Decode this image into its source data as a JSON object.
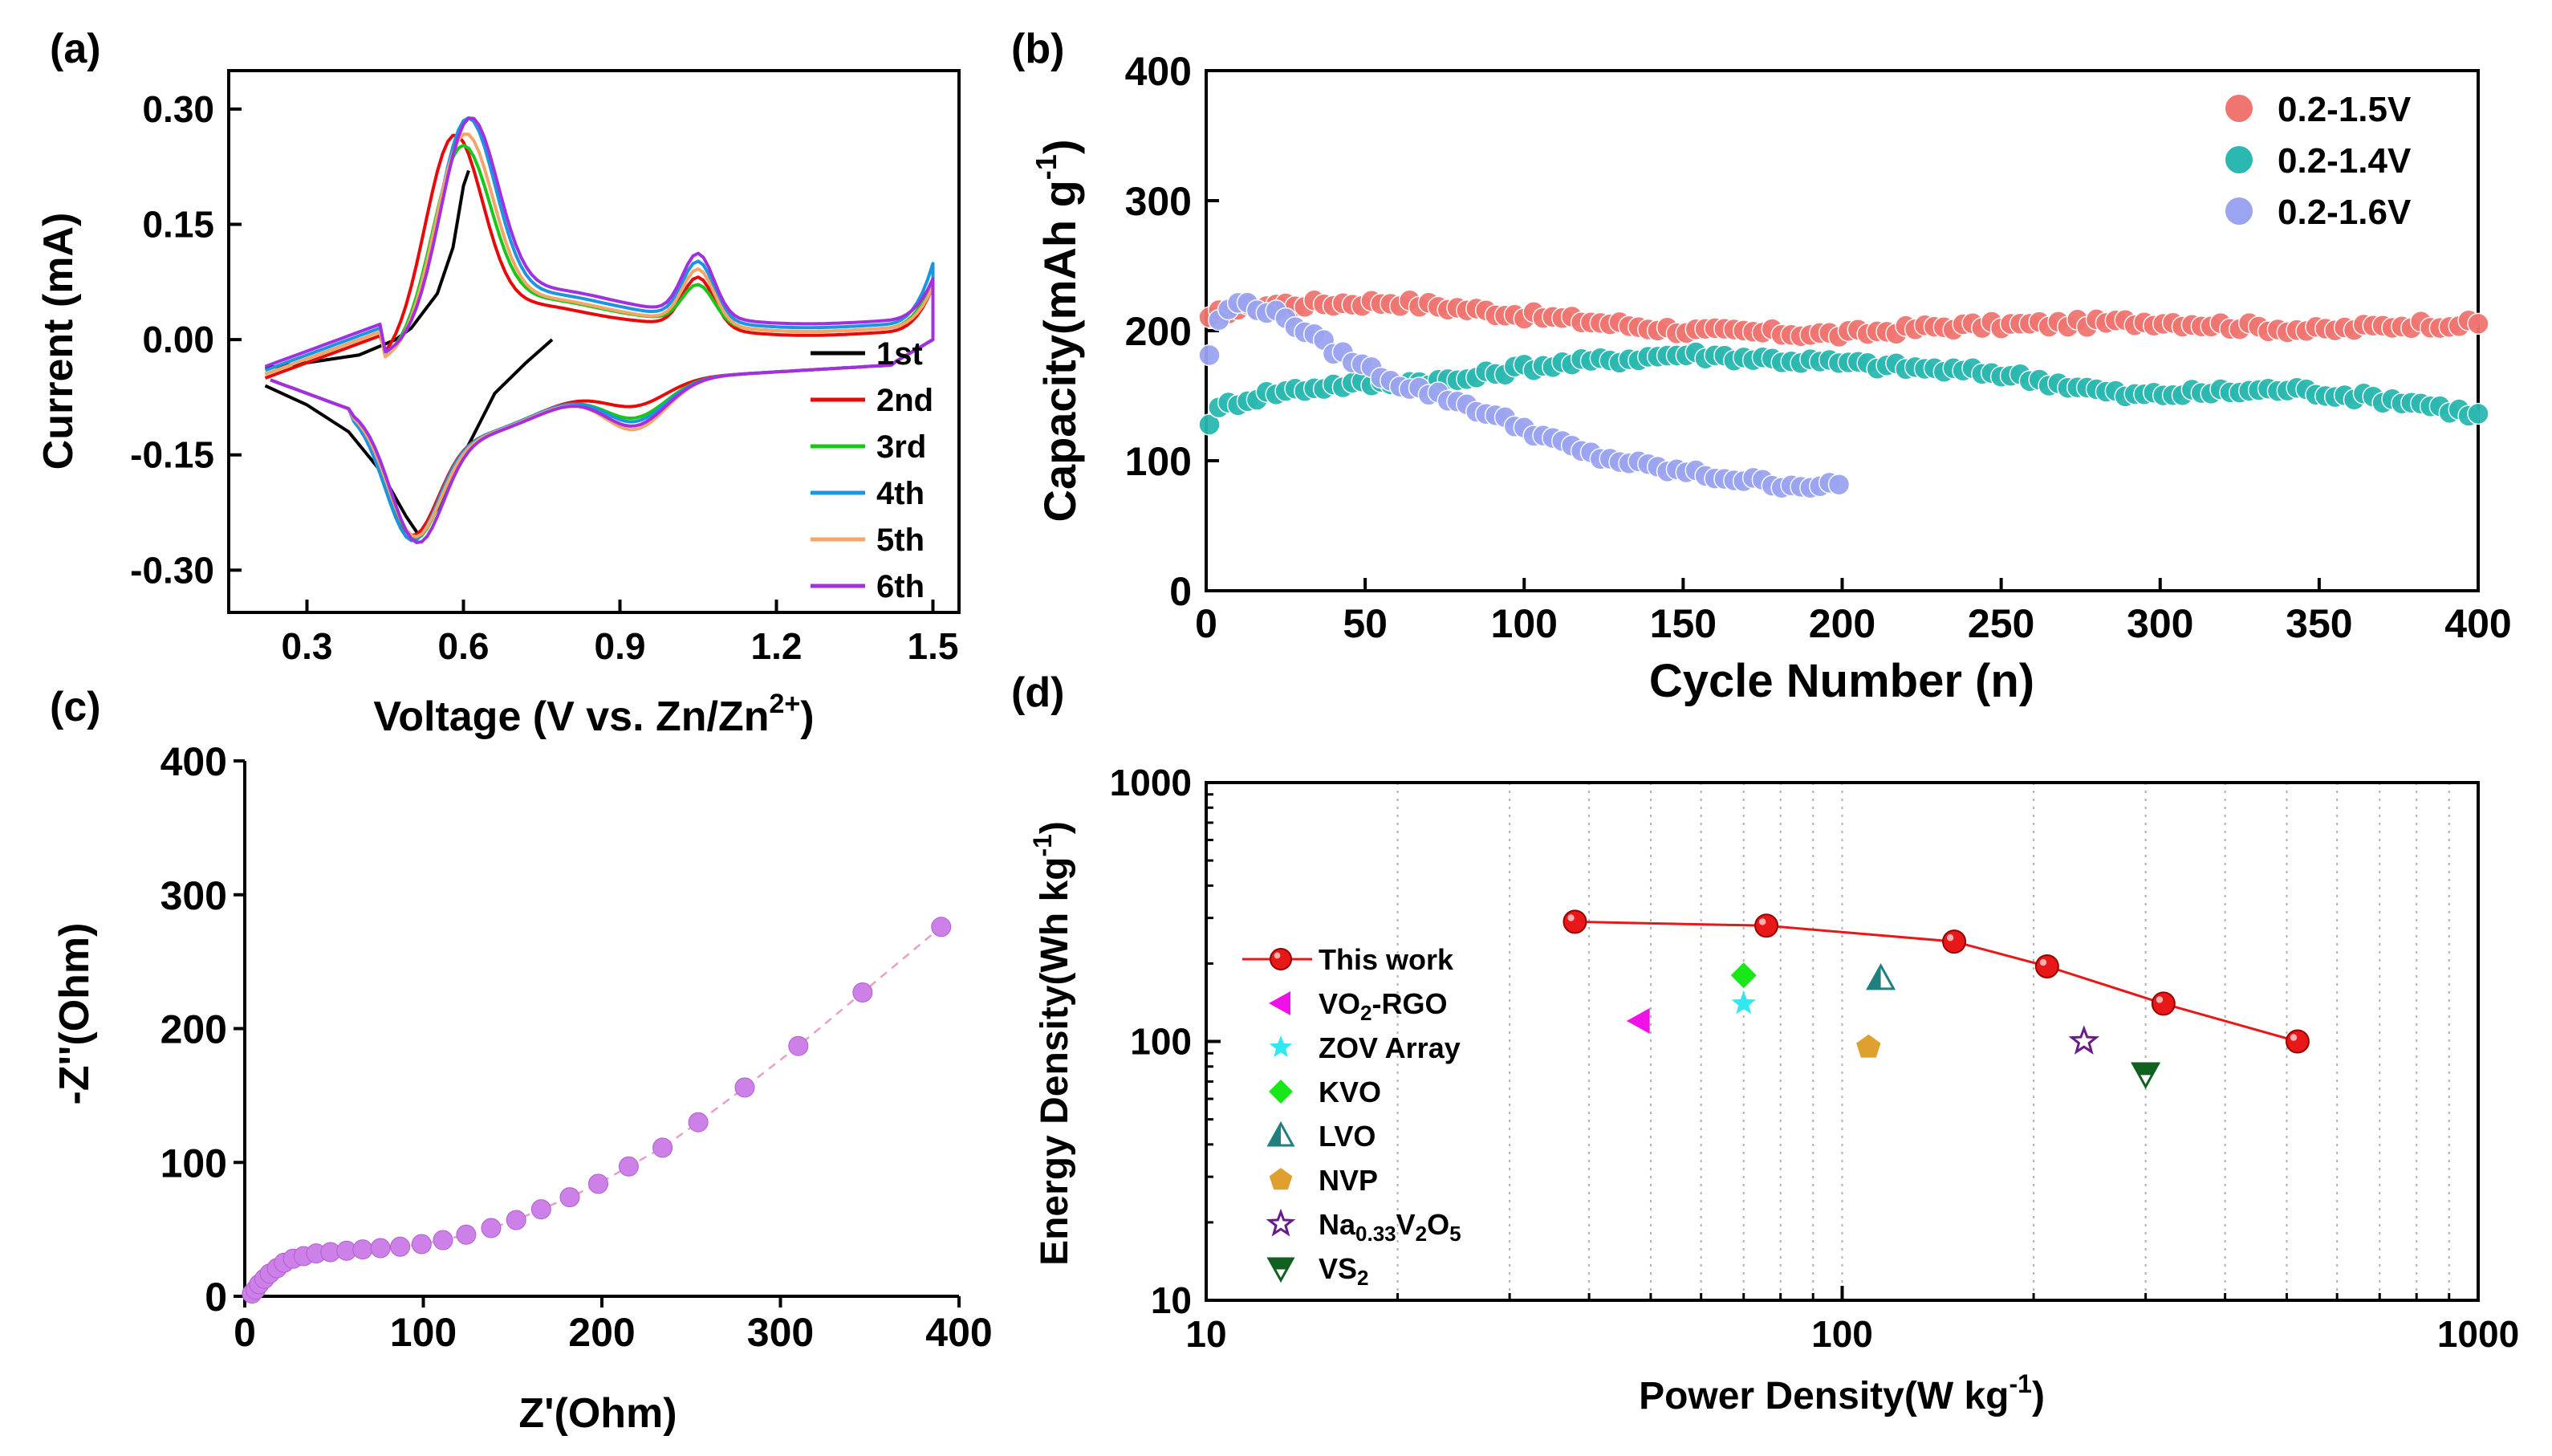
{
  "chart_data": [
    {
      "type": "line",
      "panel_label": "(a)",
      "xlabel": "Voltage (V vs. Zn/Zn",
      "xlabel_sup": "2+",
      "xlabel_end": ")",
      "ylabel": "Current (mA)",
      "xlim": [
        0.15,
        1.55
      ],
      "ylim": [
        -0.355,
        0.35
      ],
      "xticks": [
        0.3,
        0.6,
        0.9,
        1.2,
        1.5
      ],
      "xtick_labels": [
        "0.3",
        "0.6",
        "0.9",
        "1.2",
        "1.5"
      ],
      "yticks": [
        -0.3,
        -0.15,
        0.0,
        0.15,
        0.3
      ],
      "ytick_labels": [
        "-0.30",
        "-0.15",
        "0.00",
        "0.15",
        "0.30"
      ],
      "series": [
        {
          "name": "1st",
          "color": "#000000",
          "loop": false,
          "anodic": [
            [
              0.22,
              -0.037
            ],
            [
              0.3,
              -0.03
            ],
            [
              0.4,
              -0.02
            ],
            [
              0.47,
              0.0
            ],
            [
              0.5,
              0.015
            ],
            [
              0.55,
              0.06
            ],
            [
              0.58,
              0.12
            ],
            [
              0.6,
              0.2
            ],
            [
              0.61,
              0.22
            ]
          ],
          "cathodic": [
            [
              0.77,
              0.0
            ],
            [
              0.72,
              -0.03
            ],
            [
              0.66,
              -0.07
            ],
            [
              0.6,
              -0.15
            ],
            [
              0.55,
              -0.22
            ],
            [
              0.515,
              -0.255
            ],
            [
              0.49,
              -0.23
            ],
            [
              0.44,
              -0.17
            ],
            [
              0.38,
              -0.12
            ],
            [
              0.3,
              -0.085
            ],
            [
              0.22,
              -0.06
            ]
          ]
        },
        {
          "name": "2nd",
          "color": "#e8090a",
          "loop": true,
          "p": 0.58,
          "peak": 0.28,
          "hump": 0.105,
          "bump": 0.03,
          "low": -0.258,
          "lowx": 0.5,
          "end": 0.085,
          "start": -0.05
        },
        {
          "name": "3rd",
          "color": "#18c818",
          "loop": true,
          "p": 0.595,
          "peak": 0.26,
          "hump": 0.09,
          "bump": 0.045,
          "low": -0.262,
          "lowx": 0.505,
          "end": 0.09,
          "start": -0.045
        },
        {
          "name": "4th",
          "color": "#1b95e0",
          "loop": true,
          "p": 0.605,
          "peak": 0.29,
          "hump": 0.115,
          "bump": 0.05,
          "low": -0.265,
          "lowx": 0.5,
          "end": 0.105,
          "start": -0.04
        },
        {
          "name": "5th",
          "color": "#f5a46a",
          "loop": true,
          "p": 0.6,
          "peak": 0.275,
          "hump": 0.11,
          "bump": 0.06,
          "low": -0.26,
          "lowx": 0.505,
          "end": 0.08,
          "start": -0.045
        },
        {
          "name": "6th",
          "color": "#a030e0",
          "loop": true,
          "p": 0.61,
          "peak": 0.285,
          "hump": 0.12,
          "bump": 0.055,
          "low": -0.268,
          "lowx": 0.51,
          "end": 0.08,
          "start": -0.035
        }
      ],
      "legend": [
        "1st",
        "2nd",
        "3rd",
        "4th",
        "5th",
        "6th"
      ],
      "legend_placement": "bottom-right"
    },
    {
      "type": "scatter",
      "panel_label": "(b)",
      "xlabel": "Cycle Number (n)",
      "ylabel": "Capacity(mAh g",
      "ylabel_sup": "-1",
      "ylabel_end": ")",
      "xlim": [
        0,
        400
      ],
      "ylim": [
        0,
        400
      ],
      "xticks": [
        0,
        50,
        100,
        150,
        200,
        250,
        300,
        350,
        400
      ],
      "xtick_labels": [
        "0",
        "50",
        "100",
        "150",
        "200",
        "250",
        "300",
        "350",
        "400"
      ],
      "yticks": [
        0,
        100,
        200,
        300,
        400
      ],
      "ytick_labels": [
        "0",
        "100",
        "200",
        "300",
        "400"
      ],
      "series": [
        {
          "name": "0.2-1.5V",
          "color": "#f07470",
          "x_end": 400,
          "keys": [
            [
              1,
              208
            ],
            [
              5,
              215
            ],
            [
              20,
              220
            ],
            [
              60,
              222
            ],
            [
              100,
              212
            ],
            [
              150,
              200
            ],
            [
              200,
              197
            ],
            [
              230,
              203
            ],
            [
              300,
              207
            ],
            [
              350,
              200
            ],
            [
              380,
              205
            ],
            [
              400,
              205
            ]
          ]
        },
        {
          "name": "0.2-1.4V",
          "color": "#2ab8b0",
          "x_end": 400,
          "keys": [
            [
              1,
              130
            ],
            [
              5,
              142
            ],
            [
              20,
              152
            ],
            [
              40,
              158
            ],
            [
              80,
              162
            ],
            [
              100,
              172
            ],
            [
              150,
              182
            ],
            [
              200,
              175
            ],
            [
              250,
              167
            ],
            [
              290,
              150
            ],
            [
              340,
              155
            ],
            [
              380,
              145
            ],
            [
              400,
              135
            ]
          ]
        },
        {
          "name": "0.2-1.6V",
          "color": "#9aa4f0",
          "x_end": 200,
          "keys": [
            [
              1,
              182
            ],
            [
              5,
              215
            ],
            [
              12,
              222
            ],
            [
              25,
              210
            ],
            [
              40,
              185
            ],
            [
              60,
              160
            ],
            [
              80,
              145
            ],
            [
              100,
              125
            ],
            [
              120,
              105
            ],
            [
              140,
              95
            ],
            [
              160,
              88
            ],
            [
              180,
              82
            ],
            [
              200,
              80
            ]
          ]
        }
      ],
      "legend": [
        "0.2-1.5V",
        "0.2-1.4V",
        "0.2-1.6V"
      ],
      "legend_placement": "top-right"
    },
    {
      "type": "scatter",
      "panel_label": "(c)",
      "xlabel": "Z'(Ohm)",
      "ylabel": "-Z''(Ohm)",
      "xlim": [
        0,
        400
      ],
      "ylim": [
        0,
        400
      ],
      "xticks": [
        0,
        100,
        200,
        300,
        400
      ],
      "xtick_labels": [
        "0",
        "100",
        "200",
        "300",
        "400"
      ],
      "yticks": [
        0,
        100,
        200,
        300,
        400
      ],
      "ytick_labels": [
        "0",
        "100",
        "200",
        "300",
        "400"
      ],
      "color": "#cc80e8",
      "points": [
        [
          4,
          2
        ],
        [
          6,
          5
        ],
        [
          8,
          9
        ],
        [
          11,
          13
        ],
        [
          14,
          17
        ],
        [
          18,
          21
        ],
        [
          22,
          25
        ],
        [
          27,
          28
        ],
        [
          33,
          30
        ],
        [
          40,
          32
        ],
        [
          48,
          33
        ],
        [
          57,
          34
        ],
        [
          66,
          35
        ],
        [
          76,
          36
        ],
        [
          87,
          37
        ],
        [
          99,
          39
        ],
        [
          111,
          42
        ],
        [
          124,
          46
        ],
        [
          138,
          51
        ],
        [
          152,
          57
        ],
        [
          166,
          65
        ],
        [
          182,
          74
        ],
        [
          198,
          84
        ],
        [
          215,
          97
        ],
        [
          234,
          111
        ],
        [
          254,
          130
        ],
        [
          280,
          156
        ],
        [
          310,
          187
        ],
        [
          346,
          227
        ],
        [
          390,
          276
        ]
      ]
    },
    {
      "type": "scatter",
      "panel_label": "(d)",
      "xlabel": "Power Density(W kg",
      "xlabel_sup": "-1",
      "xlabel_end": ")",
      "ylabel": "Energy Density(Wh kg",
      "ylabel_sup": "-1",
      "ylabel_end": ")",
      "xscale": "log",
      "yscale": "log",
      "xlim": [
        10,
        1000
      ],
      "ylim": [
        10,
        1000
      ],
      "xticks": [
        10,
        100,
        1000
      ],
      "xtick_labels": [
        "10",
        "100",
        "1000"
      ],
      "yticks": [
        10,
        100,
        1000
      ],
      "ytick_labels": [
        "10",
        "100",
        "1000"
      ],
      "grid": "vertical dotted minor",
      "series": [
        {
          "name": "This work",
          "marker": "ball",
          "color": "#e81818",
          "line": true,
          "points": [
            [
              38,
              290
            ],
            [
              76,
              280
            ],
            [
              150,
              243
            ],
            [
              210,
              195
            ],
            [
              320,
              140
            ],
            [
              520,
              100
            ]
          ]
        },
        {
          "name": "VO",
          "sub": "2",
          "rest": "-RGO",
          "marker": "triangle-left",
          "color": "#f010e8",
          "points": [
            [
              48,
              120
            ]
          ]
        },
        {
          "name": "ZOV Array",
          "marker": "star",
          "color": "#30e8f0",
          "points": [
            [
              70,
              140
            ]
          ]
        },
        {
          "name": "KVO",
          "marker": "diamond",
          "color": "#18e818",
          "points": [
            [
              70,
              180
            ]
          ]
        },
        {
          "name": "LVO",
          "marker": "triangle-half",
          "color": "#208080",
          "points": [
            [
              115,
              175
            ]
          ]
        },
        {
          "name": "NVP",
          "marker": "pentagon",
          "color": "#e0a030",
          "points": [
            [
              110,
              95
            ]
          ]
        },
        {
          "name": "Na",
          "sub": "0.33",
          "rest": "V",
          "sub2": "2",
          "rest2": "O",
          "sub3": "5",
          "marker": "star-open",
          "color": "#6a1a8a",
          "points": [
            [
              240,
              100
            ]
          ]
        },
        {
          "name": "VS",
          "sub": "2",
          "marker": "triangle-down-half",
          "color": "#106020",
          "points": [
            [
              300,
              75
            ]
          ]
        }
      ],
      "legend": [
        "This work",
        "VO2-RGO",
        "ZOV Array",
        "KVO",
        "LVO",
        "NVP",
        "Na0.33V2O5",
        "VS2"
      ],
      "legend_placement": "middle-left"
    }
  ]
}
